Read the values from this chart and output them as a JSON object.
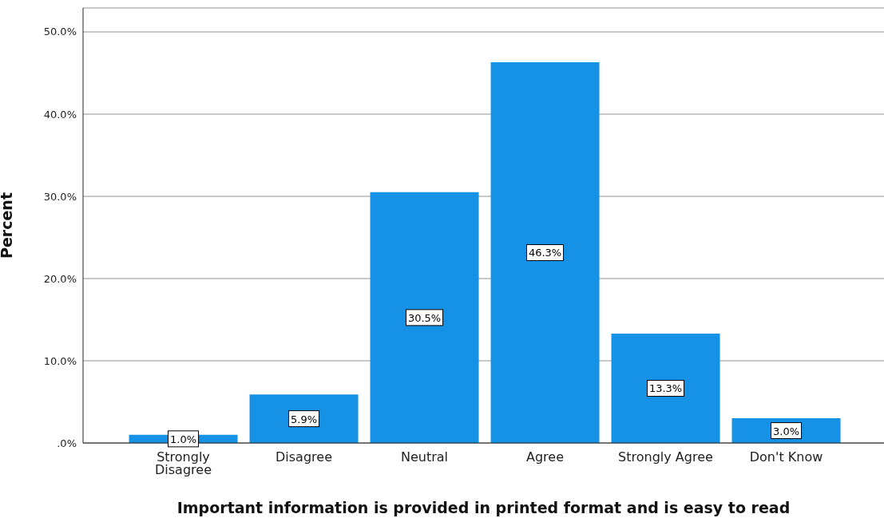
{
  "chart_data": {
    "type": "bar",
    "xlabel": "Important information is provided in printed format and is easy to read",
    "ylabel": "Percent",
    "categories": [
      "Strongly Disagree",
      "Disagree",
      "Neutral",
      "Agree",
      "Strongly Agree",
      "Don't Know"
    ],
    "values": [
      1.0,
      5.9,
      30.5,
      46.3,
      13.3,
      3.0
    ],
    "value_labels": [
      "1.0%",
      "5.9%",
      "30.5%",
      "46.3%",
      "13.3%",
      "3.0%"
    ],
    "color": "#1591e6",
    "ylim": [
      0,
      52.9
    ],
    "yticks": [
      {
        "value": 0,
        "label": ".0%"
      },
      {
        "value": 10,
        "label": "10.0%"
      },
      {
        "value": 20,
        "label": "20.0%"
      },
      {
        "value": 30,
        "label": "30.0%"
      },
      {
        "value": 40,
        "label": "40.0%"
      },
      {
        "value": 50,
        "label": "50.0%"
      }
    ],
    "grid": "y"
  }
}
